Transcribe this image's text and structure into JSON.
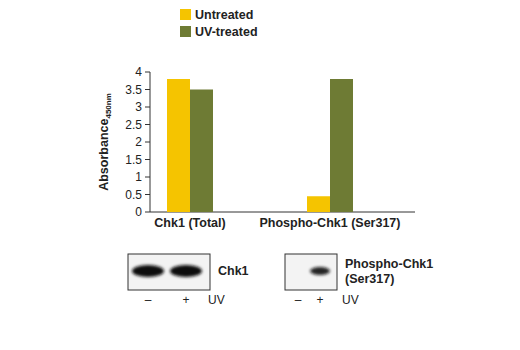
{
  "chart_data": {
    "type": "bar",
    "y_label": "Absorbance",
    "y_label_subscript": "450nm",
    "categories": [
      "Chk1 (Total)",
      "Phospho-Chk1 (Ser317)"
    ],
    "series": [
      {
        "name": "Untreated",
        "color": "#f5c400",
        "values": [
          3.8,
          0.45
        ]
      },
      {
        "name": "UV-treated",
        "color": "#6e7b34",
        "values": [
          3.5,
          3.8
        ]
      }
    ],
    "ylim": [
      0,
      4
    ],
    "yticks": [
      0,
      0.5,
      1,
      1.5,
      2,
      2.5,
      3,
      3.5,
      4
    ],
    "grid": false,
    "legend": "top-left"
  },
  "blots": [
    {
      "label": [
        "Chk1"
      ],
      "lanes": [
        "–",
        "+"
      ],
      "treatment": "UV"
    },
    {
      "label": [
        "Phospho-Chk1",
        "(Ser317)"
      ],
      "lanes": [
        "–",
        "+"
      ],
      "treatment": "UV"
    }
  ]
}
